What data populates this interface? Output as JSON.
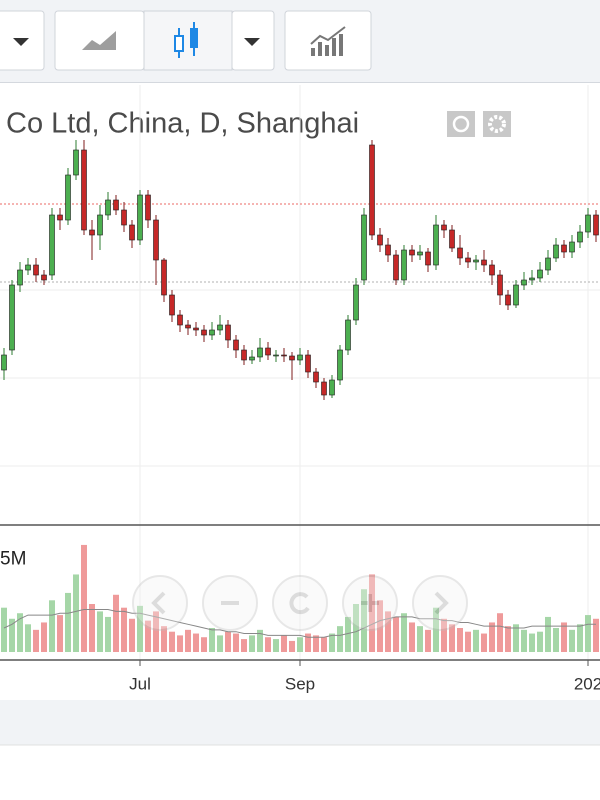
{
  "chart_data": {
    "type": "candlestick",
    "title": "Co Ltd, China, D, Shanghai",
    "categories": [
      null,
      null,
      null,
      null,
      null,
      null,
      null,
      null,
      null,
      null,
      null,
      null,
      null,
      null,
      null,
      null,
      null,
      "Jul",
      null,
      null,
      null,
      null,
      null,
      null,
      null,
      null,
      null,
      null,
      null,
      null,
      null,
      null,
      null,
      null,
      null,
      null,
      null,
      "Sep",
      null,
      null,
      null,
      null,
      null,
      null,
      null,
      null,
      null,
      null,
      null,
      null,
      null,
      null,
      null,
      null,
      null,
      null,
      null,
      null,
      null,
      null,
      null,
      null,
      null,
      null,
      null,
      null,
      null,
      null,
      null,
      null,
      null,
      null,
      null,
      "202",
      null
    ],
    "open": [
      150,
      170,
      235,
      250,
      255,
      245,
      245,
      305,
      300,
      345,
      370,
      290,
      285,
      305,
      320,
      310,
      295,
      280,
      325,
      300,
      260,
      225,
      205,
      195,
      192,
      190,
      185,
      190,
      195,
      180,
      170,
      160,
      163,
      172,
      165,
      165,
      164,
      160,
      165,
      148,
      138,
      125,
      140,
      170,
      200,
      240,
      375,
      285,
      275,
      265,
      240,
      270,
      265,
      268,
      255,
      295,
      290,
      272,
      262,
      258,
      260,
      255,
      245,
      225,
      215,
      235,
      240,
      242,
      250,
      262,
      275,
      268,
      278,
      288,
      305
    ],
    "high": [
      172,
      240,
      258,
      262,
      262,
      250,
      312,
      312,
      352,
      380,
      380,
      300,
      315,
      328,
      325,
      318,
      300,
      330,
      330,
      305,
      262,
      230,
      210,
      200,
      198,
      195,
      198,
      205,
      200,
      185,
      175,
      170,
      182,
      178,
      170,
      172,
      168,
      172,
      170,
      152,
      142,
      145,
      175,
      205,
      242,
      312,
      380,
      292,
      282,
      270,
      275,
      275,
      275,
      272,
      305,
      300,
      295,
      285,
      268,
      265,
      270,
      260,
      250,
      230,
      240,
      248,
      250,
      258,
      270,
      282,
      280,
      285,
      295,
      312,
      310
    ],
    "low": [
      140,
      165,
      228,
      245,
      238,
      235,
      240,
      290,
      295,
      340,
      285,
      260,
      270,
      300,
      305,
      288,
      272,
      275,
      292,
      235,
      218,
      198,
      188,
      185,
      184,
      178,
      180,
      185,
      172,
      162,
      155,
      156,
      158,
      160,
      158,
      158,
      140,
      155,
      142,
      132,
      120,
      122,
      135,
      165,
      195,
      235,
      280,
      268,
      258,
      235,
      235,
      258,
      260,
      248,
      250,
      282,
      268,
      255,
      252,
      250,
      248,
      235,
      215,
      210,
      212,
      230,
      235,
      238,
      245,
      258,
      262,
      262,
      272,
      282,
      278
    ],
    "close": [
      165,
      235,
      250,
      255,
      245,
      240,
      305,
      300,
      345,
      370,
      290,
      285,
      305,
      320,
      310,
      295,
      280,
      325,
      300,
      260,
      225,
      205,
      195,
      192,
      190,
      185,
      190,
      195,
      180,
      170,
      160,
      163,
      172,
      165,
      165,
      164,
      160,
      165,
      148,
      138,
      125,
      140,
      170,
      200,
      235,
      305,
      285,
      275,
      265,
      240,
      270,
      265,
      268,
      255,
      295,
      290,
      272,
      262,
      258,
      260,
      255,
      245,
      225,
      215,
      235,
      240,
      242,
      250,
      262,
      275,
      268,
      278,
      288,
      305,
      285
    ],
    "ylim": [
      0,
      420
    ],
    "ygrid": [
      54,
      142,
      230
    ],
    "price_lines": [
      {
        "value": 316,
        "color": "#e53935"
      },
      {
        "value": 238,
        "color": "#999999"
      }
    ],
    "up_color": "#4caf50",
    "down_color": "#c62828",
    "volume": [
      2.4,
      1.8,
      2.1,
      1.5,
      1.2,
      1.6,
      2.8,
      2.0,
      3.2,
      4.2,
      5.8,
      2.6,
      2.2,
      1.9,
      3.1,
      2.4,
      1.8,
      2.5,
      1.7,
      2.2,
      1.4,
      1.1,
      0.9,
      1.2,
      1.0,
      0.8,
      1.3,
      0.9,
      1.1,
      1.0,
      0.7,
      0.9,
      1.2,
      0.8,
      0.7,
      0.9,
      0.6,
      0.8,
      1.0,
      0.9,
      0.8,
      1.0,
      1.4,
      1.9,
      2.6,
      3.4,
      4.2,
      2.8,
      2.2,
      1.9,
      2.1,
      1.6,
      1.4,
      1.2,
      2.4,
      1.8,
      1.5,
      1.3,
      1.1,
      1.2,
      1.0,
      1.6,
      2.1,
      1.4,
      1.5,
      1.2,
      1.0,
      1.1,
      1.9,
      1.3,
      1.6,
      1.2,
      1.5,
      2.0,
      1.8
    ],
    "volume_ma": [
      1.3,
      1.5,
      1.8,
      2.0,
      2.0,
      2.0,
      2.0,
      2.1,
      2.1,
      2.2,
      2.3,
      2.3,
      2.3,
      2.3,
      2.2,
      2.2,
      2.1,
      2.1,
      2.0,
      1.9,
      1.8,
      1.7,
      1.6,
      1.5,
      1.4,
      1.3,
      1.2,
      1.2,
      1.1,
      1.1,
      1.0,
      1.0,
      1.0,
      0.9,
      0.9,
      0.9,
      0.9,
      0.9,
      0.8,
      0.8,
      0.8,
      0.9,
      0.9,
      1.0,
      1.1,
      1.3,
      1.5,
      1.7,
      1.8,
      1.9,
      1.9,
      1.9,
      1.8,
      1.8,
      1.8,
      1.7,
      1.7,
      1.6,
      1.6,
      1.5,
      1.4,
      1.4,
      1.4,
      1.3,
      1.3,
      1.3,
      1.4,
      1.4,
      1.4,
      1.4,
      1.4,
      1.4,
      1.4,
      1.5,
      1.5
    ],
    "volume_ylim": [
      0,
      6.5
    ],
    "volume_ticks": [
      {
        "value": 5,
        "label": "5M"
      }
    ],
    "volume_up_color": "#a5d6a7",
    "volume_down_color": "#ef9a9a",
    "volume_ma_color": "#888888"
  }
}
